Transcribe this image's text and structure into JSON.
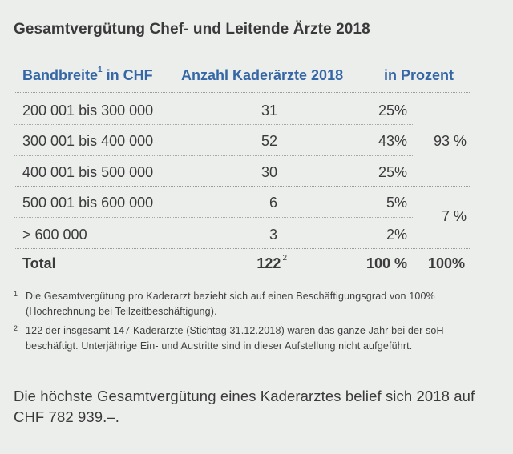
{
  "title": "Gesamtvergütung Chef- und Leitende Ärzte 2018",
  "header": {
    "col1": "Bandbreite",
    "col1_sup": "1",
    "col1_suffix": " in CHF",
    "col2": "Anzahl Kaderärzte 2018",
    "col3": "in Prozent"
  },
  "rows": [
    {
      "range": "200 001 bis 300 000",
      "count": "31",
      "percent": "25%"
    },
    {
      "range": "300 001 bis 400 000",
      "count": "52",
      "percent": "43%"
    },
    {
      "range": "400 001 bis 500 000",
      "count": "30",
      "percent": "25%"
    },
    {
      "range": "500 001 bis 600 000",
      "count": "6",
      "percent": "5%"
    },
    {
      "range": "> 600 000",
      "count": "3",
      "percent": "2%"
    }
  ],
  "group_totals": [
    "93 %",
    "7 %"
  ],
  "total": {
    "label": "Total",
    "count": "122",
    "count_sup": "2",
    "percent": "100 %",
    "group_percent": "100%"
  },
  "footnotes": [
    {
      "num": "1",
      "text": "Die Gesamtvergütung pro Kaderarzt bezieht sich auf einen Beschäftigungsgrad von 100% (Hochrechnung bei Teilzeitbeschäftigung)."
    },
    {
      "num": "2",
      "text": "122 der insgesamt 147 Kaderärzte (Stichtag 31.12.2018) waren das ganze Jahr bei der soH beschäftigt. Unterjährige Ein- und Austritte sind in dieser Aufstellung nicht aufgeführt."
    }
  ],
  "summary": "Die höchste Gesamtvergütung eines Kaderarztes belief sich 2018 auf CHF 782 939.–."
}
